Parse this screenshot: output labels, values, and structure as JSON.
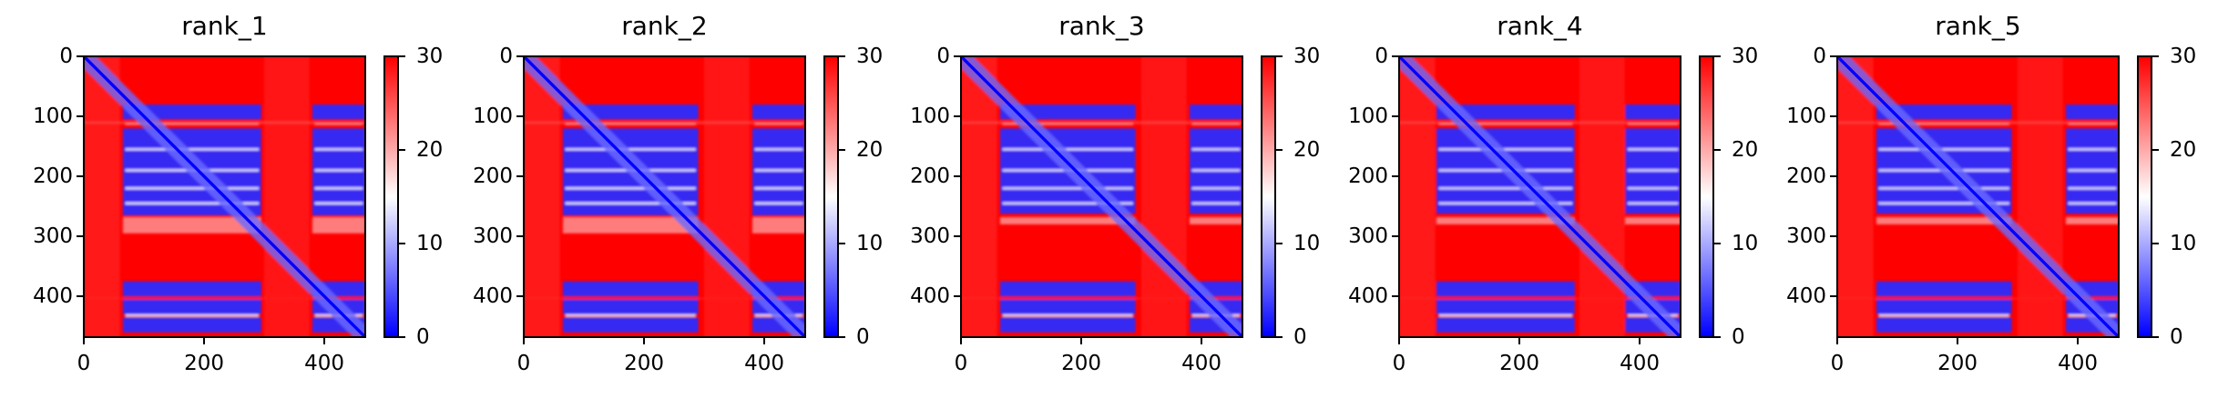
{
  "figure": {
    "panel_titles": [
      "rank_1",
      "rank_2",
      "rank_3",
      "rank_4",
      "rank_5"
    ],
    "x_tick_labels": [
      "0",
      "200",
      "400"
    ],
    "y_tick_labels": [
      "0",
      "100",
      "200",
      "300",
      "400"
    ],
    "colorbar_tick_labels": [
      "0",
      "10",
      "20",
      "30"
    ],
    "colormap": "bwr",
    "colors": {
      "low": "#0000ff",
      "mid": "#ffffff",
      "high": "#ff0000"
    }
  },
  "chart_data": [
    {
      "type": "heatmap",
      "title": "rank_1",
      "x_range": [
        0,
        468
      ],
      "y_range": [
        0,
        468
      ],
      "y_inverted": true,
      "x_ticks": [
        0,
        200,
        400
      ],
      "y_ticks": [
        0,
        100,
        200,
        300,
        400
      ],
      "colorbar": {
        "min": 0,
        "max": 30,
        "ticks": [
          0,
          10,
          20,
          30
        ],
        "cmap": "bwr"
      },
      "blue_column_bands": [
        [
          65,
          295
        ],
        [
          380,
          468
        ]
      ],
      "blue_row_bands": [
        [
          80,
          105
        ],
        [
          120,
          265
        ],
        [
          375,
          400
        ],
        [
          405,
          430
        ],
        [
          435,
          460
        ]
      ],
      "light_stripes_y": [
        112,
        155,
        190,
        220,
        245,
        432
      ],
      "mottled_band_y": [
        268,
        295
      ],
      "diagonal": "blue (distance 0)"
    },
    {
      "type": "heatmap",
      "title": "rank_2",
      "x_range": [
        0,
        468
      ],
      "y_range": [
        0,
        468
      ],
      "y_inverted": true,
      "x_ticks": [
        0,
        200,
        400
      ],
      "y_ticks": [
        0,
        100,
        200,
        300,
        400
      ],
      "colorbar": {
        "min": 0,
        "max": 30,
        "ticks": [
          0,
          10,
          20,
          30
        ],
        "cmap": "bwr"
      },
      "blue_column_bands": [
        [
          65,
          290
        ],
        [
          380,
          468
        ]
      ],
      "blue_row_bands": [
        [
          80,
          105
        ],
        [
          120,
          265
        ],
        [
          375,
          400
        ],
        [
          405,
          430
        ],
        [
          435,
          460
        ]
      ],
      "light_stripes_y": [
        112,
        155,
        190,
        220,
        245,
        432
      ],
      "mottled_band_y": [
        268,
        295
      ],
      "diagonal": "blue (distance 0)"
    },
    {
      "type": "heatmap",
      "title": "rank_3",
      "x_range": [
        0,
        468
      ],
      "y_range": [
        0,
        468
      ],
      "y_inverted": true,
      "x_ticks": [
        0,
        200,
        400
      ],
      "y_ticks": [
        0,
        100,
        200,
        300,
        400
      ],
      "colorbar": {
        "min": 0,
        "max": 30,
        "ticks": [
          0,
          10,
          20,
          30
        ],
        "cmap": "bwr"
      },
      "blue_column_bands": [
        [
          65,
          290
        ],
        [
          380,
          468
        ]
      ],
      "blue_row_bands": [
        [
          80,
          105
        ],
        [
          120,
          262
        ],
        [
          375,
          400
        ],
        [
          405,
          430
        ],
        [
          435,
          460
        ]
      ],
      "light_stripes_y": [
        112,
        155,
        190,
        220,
        245,
        432
      ],
      "mottled_band_y": [
        268,
        280
      ],
      "diagonal": "blue (distance 0)"
    },
    {
      "type": "heatmap",
      "title": "rank_4",
      "x_range": [
        0,
        468
      ],
      "y_range": [
        0,
        468
      ],
      "y_inverted": true,
      "x_ticks": [
        0,
        200,
        400
      ],
      "y_ticks": [
        0,
        100,
        200,
        300,
        400
      ],
      "colorbar": {
        "min": 0,
        "max": 30,
        "ticks": [
          0,
          10,
          20,
          30
        ],
        "cmap": "bwr"
      },
      "blue_column_bands": [
        [
          62,
          292
        ],
        [
          376,
          468
        ]
      ],
      "blue_row_bands": [
        [
          80,
          105
        ],
        [
          120,
          262
        ],
        [
          375,
          400
        ],
        [
          405,
          430
        ],
        [
          435,
          460
        ]
      ],
      "light_stripes_y": [
        112,
        155,
        190,
        220,
        245,
        432
      ],
      "mottled_band_y": [
        268,
        280
      ],
      "diagonal": "blue (distance 0)"
    },
    {
      "type": "heatmap",
      "title": "rank_5",
      "x_range": [
        0,
        468
      ],
      "y_range": [
        0,
        468
      ],
      "y_inverted": true,
      "x_ticks": [
        0,
        200,
        400
      ],
      "y_ticks": [
        0,
        100,
        200,
        300,
        400
      ],
      "colorbar": {
        "min": 0,
        "max": 30,
        "ticks": [
          0,
          10,
          20,
          30
        ],
        "cmap": "bwr"
      },
      "blue_column_bands": [
        [
          65,
          290
        ],
        [
          380,
          468
        ]
      ],
      "blue_row_bands": [
        [
          80,
          105
        ],
        [
          120,
          262
        ],
        [
          375,
          400
        ],
        [
          405,
          430
        ],
        [
          435,
          460
        ]
      ],
      "light_stripes_y": [
        112,
        155,
        190,
        220,
        245,
        432
      ],
      "mottled_band_y": [
        268,
        280
      ],
      "diagonal": "blue (distance 0)"
    }
  ]
}
